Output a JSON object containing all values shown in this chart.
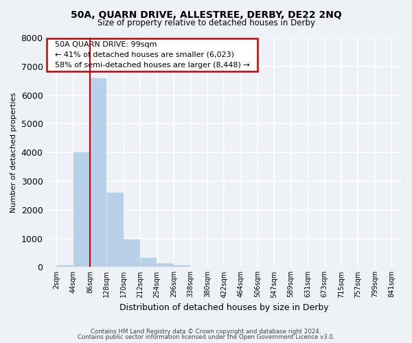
{
  "title": "50A, QUARN DRIVE, ALLESTREE, DERBY, DE22 2NQ",
  "subtitle": "Size of property relative to detached houses in Derby",
  "xlabel": "Distribution of detached houses by size in Derby",
  "ylabel": "Number of detached properties",
  "bar_values": [
    60,
    4000,
    6600,
    2600,
    970,
    320,
    130,
    60,
    0,
    0,
    0,
    0,
    0,
    0,
    0,
    0,
    0,
    0,
    0,
    0
  ],
  "bin_labels": [
    "2sqm",
    "44sqm",
    "86sqm",
    "128sqm",
    "170sqm",
    "212sqm",
    "254sqm",
    "296sqm",
    "338sqm",
    "380sqm",
    "422sqm",
    "464sqm",
    "506sqm",
    "547sqm",
    "589sqm",
    "631sqm",
    "673sqm",
    "715sqm",
    "757sqm",
    "799sqm",
    "841sqm"
  ],
  "bar_color": "#b8d0e8",
  "bar_edge_color": "#b8d0e8",
  "annotation_title": "50A QUARN DRIVE: 99sqm",
  "annotation_line1": "← 41% of detached houses are smaller (6,023)",
  "annotation_line2": "58% of semi-detached houses are larger (8,448) →",
  "annotation_box_color": "white",
  "annotation_box_edge_color": "#cc0000",
  "property_line_color": "#cc0000",
  "property_line_bin_index": 2,
  "ylim": [
    0,
    8000
  ],
  "yticks": [
    0,
    1000,
    2000,
    3000,
    4000,
    5000,
    6000,
    7000,
    8000
  ],
  "footer1": "Contains HM Land Registry data © Crown copyright and database right 2024.",
  "footer2": "Contains public sector information licensed under the Open Government Licence v3.0.",
  "background_color": "#eef2f7",
  "grid_color": "white"
}
